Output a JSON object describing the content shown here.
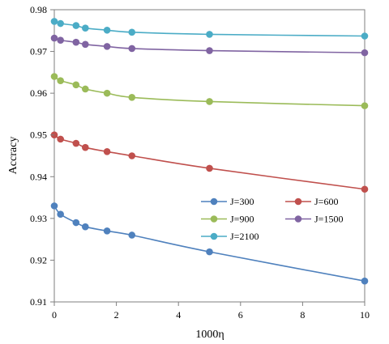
{
  "chart_data": {
    "type": "line",
    "xlabel": "1000η",
    "ylabel": "Accracy",
    "xlim": [
      0,
      10
    ],
    "ylim": [
      0.91,
      0.98
    ],
    "xticks": [
      0,
      2,
      4,
      6,
      8,
      10
    ],
    "yticks": [
      0.91,
      0.92,
      0.93,
      0.94,
      0.95,
      0.96,
      0.97,
      0.98
    ],
    "ytick_labels": [
      "0.91",
      "0.92",
      "0.93",
      "0.94",
      "0.95",
      "0.96",
      "0.97",
      "0.98"
    ],
    "grid": false,
    "legend_position": "bottom-right",
    "x": [
      0.0,
      0.2,
      0.7,
      1.0,
      1.7,
      2.5,
      5.0,
      10.0
    ],
    "series": [
      {
        "name": "J=300",
        "color": "#4f81bd",
        "values": [
          0.933,
          0.931,
          0.929,
          0.928,
          0.927,
          0.926,
          0.922,
          0.915
        ]
      },
      {
        "name": "J=600",
        "color": "#c0504d",
        "values": [
          0.95,
          0.949,
          0.948,
          0.947,
          0.946,
          0.945,
          0.942,
          0.937
        ]
      },
      {
        "name": "J=900",
        "color": "#9bbb59",
        "values": [
          0.964,
          0.963,
          0.962,
          0.961,
          0.96,
          0.959,
          0.958,
          0.957
        ]
      },
      {
        "name": "J=1500",
        "color": "#8064a2",
        "values": [
          0.9732,
          0.9727,
          0.9722,
          0.9717,
          0.9712,
          0.9707,
          0.9702,
          0.9697
        ]
      },
      {
        "name": "J=2100",
        "color": "#4bacc6",
        "values": [
          0.9772,
          0.9767,
          0.9762,
          0.9756,
          0.9751,
          0.9746,
          0.9741,
          0.9737
        ]
      }
    ]
  }
}
